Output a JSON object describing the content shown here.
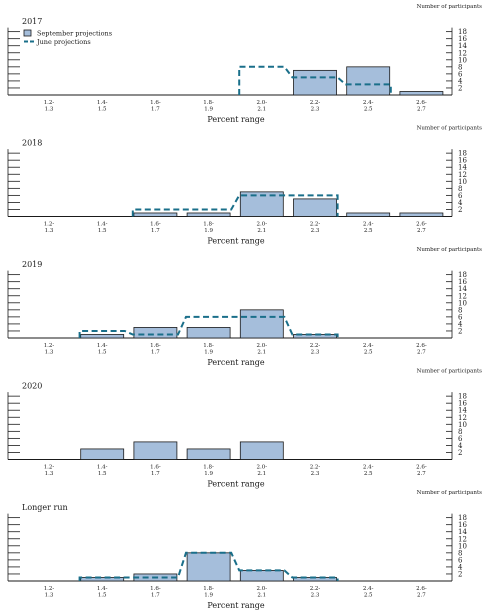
{
  "chart_data": [
    {
      "type": "bar",
      "title": "2017",
      "ylabel": "Number of participants",
      "xlabel": "Percent range",
      "categories": [
        [
          "1.2-",
          "1.3"
        ],
        [
          "1.4-",
          "1.5"
        ],
        [
          "1.6-",
          "1.7"
        ],
        [
          "1.8-",
          "1.9"
        ],
        [
          "2.0-",
          "2.1"
        ],
        [
          "2.2-",
          "2.3"
        ],
        [
          "2.4-",
          "2.5"
        ],
        [
          "2.6-",
          "2.7"
        ]
      ],
      "yticks": [
        2,
        4,
        6,
        8,
        10,
        12,
        14,
        16,
        18
      ],
      "ylim": [
        0,
        18
      ],
      "legend": [
        "September projections",
        "June projections"
      ],
      "series": [
        {
          "name": "September projections",
          "values": [
            0,
            0,
            0,
            0,
            0,
            7,
            8,
            1
          ]
        },
        {
          "name": "June projections",
          "values": [
            0,
            0,
            0,
            0,
            8,
            5,
            3,
            0
          ]
        }
      ]
    },
    {
      "type": "bar",
      "title": "2018",
      "ylabel": "Number of participants",
      "xlabel": "Percent range",
      "categories": [
        [
          "1.2-",
          "1.3"
        ],
        [
          "1.4-",
          "1.5"
        ],
        [
          "1.6-",
          "1.7"
        ],
        [
          "1.8-",
          "1.9"
        ],
        [
          "2.0-",
          "2.1"
        ],
        [
          "2.2-",
          "2.3"
        ],
        [
          "2.4-",
          "2.5"
        ],
        [
          "2.6-",
          "2.7"
        ]
      ],
      "yticks": [
        2,
        4,
        6,
        8,
        10,
        12,
        14,
        16,
        18
      ],
      "ylim": [
        0,
        18
      ],
      "series": [
        {
          "name": "September projections",
          "values": [
            0,
            0,
            1,
            1,
            7,
            5,
            1,
            1
          ]
        },
        {
          "name": "June projections",
          "values": [
            0,
            0,
            2,
            2,
            6,
            6,
            0,
            0
          ]
        }
      ]
    },
    {
      "type": "bar",
      "title": "2019",
      "ylabel": "Number of participants",
      "xlabel": "Percent range",
      "categories": [
        [
          "1.2-",
          "1.3"
        ],
        [
          "1.4-",
          "1.5"
        ],
        [
          "1.6-",
          "1.7"
        ],
        [
          "1.8-",
          "1.9"
        ],
        [
          "2.0-",
          "2.1"
        ],
        [
          "2.2-",
          "2.3"
        ],
        [
          "2.4-",
          "2.5"
        ],
        [
          "2.6-",
          "2.7"
        ]
      ],
      "yticks": [
        2,
        4,
        6,
        8,
        10,
        12,
        14,
        16,
        18
      ],
      "ylim": [
        0,
        18
      ],
      "series": [
        {
          "name": "September projections",
          "values": [
            0,
            1,
            3,
            3,
            8,
            1,
            0,
            0
          ]
        },
        {
          "name": "June projections",
          "values": [
            0,
            2,
            1,
            6,
            6,
            1,
            0,
            0
          ]
        }
      ]
    },
    {
      "type": "bar",
      "title": "2020",
      "ylabel": "Number of participants",
      "xlabel": "Percent range",
      "categories": [
        [
          "1.2-",
          "1.3"
        ],
        [
          "1.4-",
          "1.5"
        ],
        [
          "1.6-",
          "1.7"
        ],
        [
          "1.8-",
          "1.9"
        ],
        [
          "2.0-",
          "2.1"
        ],
        [
          "2.2-",
          "2.3"
        ],
        [
          "2.4-",
          "2.5"
        ],
        [
          "2.6-",
          "2.7"
        ]
      ],
      "yticks": [
        2,
        4,
        6,
        8,
        10,
        12,
        14,
        16,
        18
      ],
      "ylim": [
        0,
        18
      ],
      "series": [
        {
          "name": "September projections",
          "values": [
            0,
            3,
            5,
            3,
            5,
            0,
            0,
            0
          ]
        }
      ]
    },
    {
      "type": "bar",
      "title": "Longer run",
      "ylabel": "Number of participants",
      "xlabel": "Percent range",
      "categories": [
        [
          "1.2-",
          "1.3"
        ],
        [
          "1.4-",
          "1.5"
        ],
        [
          "1.6-",
          "1.7"
        ],
        [
          "1.8-",
          "1.9"
        ],
        [
          "2.0-",
          "2.1"
        ],
        [
          "2.2-",
          "2.3"
        ],
        [
          "2.4-",
          "2.5"
        ],
        [
          "2.6-",
          "2.7"
        ]
      ],
      "yticks": [
        2,
        4,
        6,
        8,
        10,
        12,
        14,
        16,
        18
      ],
      "ylim": [
        0,
        18
      ],
      "series": [
        {
          "name": "September projections",
          "values": [
            0,
            1,
            2,
            8,
            3,
            1,
            0,
            0
          ]
        },
        {
          "name": "June projections",
          "values": [
            0,
            1,
            1,
            8,
            3,
            1,
            0,
            0
          ]
        }
      ]
    }
  ],
  "colors": {
    "bar_fill": "#a5bedb",
    "bar_stroke": "#1a1a1a",
    "dashed": "#1a6f8a",
    "axis": "#1a1a1a"
  }
}
